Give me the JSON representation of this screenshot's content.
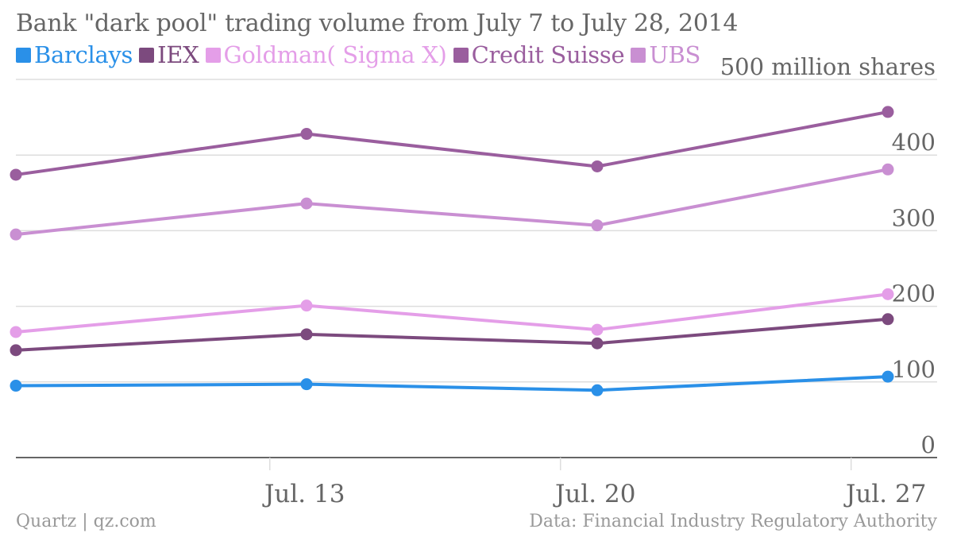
{
  "title": "Bank \"dark pool\" trading volume from July 7 to July 28, 2014",
  "footer": {
    "source_left": "Quartz | qz.com",
    "source_right": "Data: Financial Industry Regulatory Authority"
  },
  "colors": {
    "background": "#ffffff",
    "grid": "#dddddd",
    "axis": "#666666",
    "text": "#666666",
    "footer_text": "#999999"
  },
  "chart_data": {
    "type": "line",
    "title": "Bank \"dark pool\" trading volume from July 7 to July 28, 2014",
    "ylabel": "500 million shares",
    "ylim": [
      0,
      500
    ],
    "yticks": [
      "0",
      "100",
      "200",
      "300",
      "400"
    ],
    "x_dates": [
      "2014-07-07",
      "2014-07-14",
      "2014-07-21",
      "2014-07-28"
    ],
    "xticks": [
      {
        "date": "2014-07-13",
        "label": "Jul. 13"
      },
      {
        "date": "2014-07-20",
        "label": "Jul. 20"
      },
      {
        "date": "2014-07-27",
        "label": "Jul. 27"
      }
    ],
    "x_range": [
      "2014-07-07",
      "2014-07-29"
    ],
    "grid": true,
    "legend_position": "top-left",
    "series": [
      {
        "name": "Barclays",
        "color": "#2a90e8",
        "values": [
          95,
          97,
          89,
          107
        ]
      },
      {
        "name": "IEX",
        "color": "#7c4a7e",
        "values": [
          142,
          163,
          151,
          183
        ]
      },
      {
        "name": "Goldman( Sigma X)",
        "color": "#e49ee8",
        "values": [
          166,
          201,
          169,
          216
        ]
      },
      {
        "name": "Credit Suisse",
        "color": "#9a5e9e",
        "values": [
          374,
          428,
          385,
          457
        ]
      },
      {
        "name": "UBS",
        "color": "#c98fd2",
        "values": [
          295,
          336,
          307,
          381
        ]
      }
    ]
  }
}
